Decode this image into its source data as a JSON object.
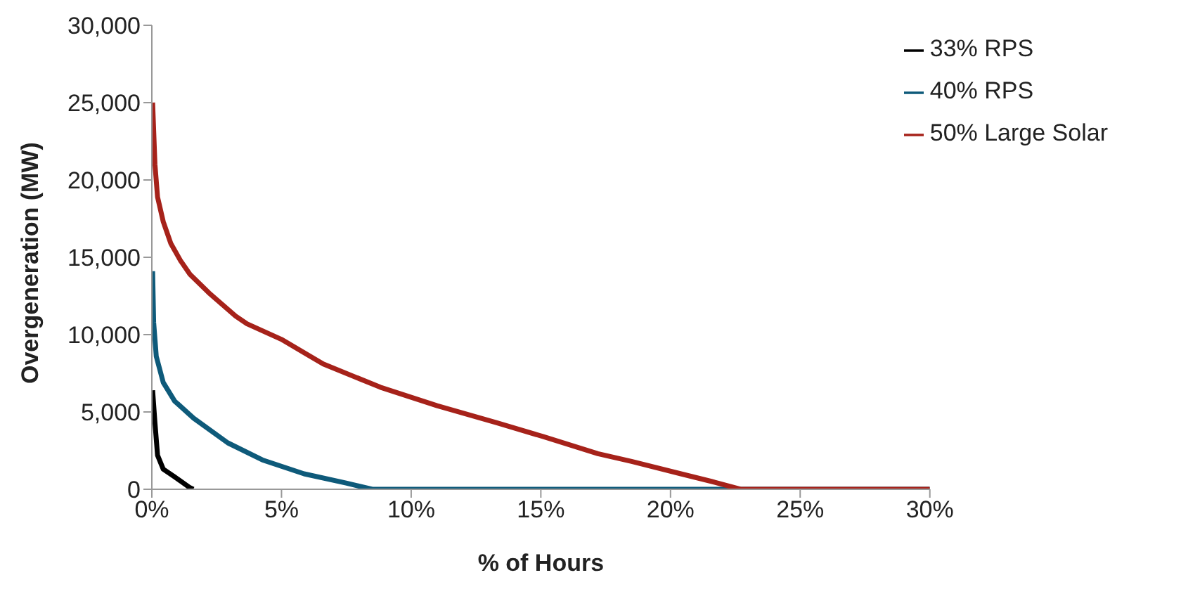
{
  "chart_data": {
    "type": "line",
    "xlabel": "% of Hours",
    "ylabel": "Overgeneration (MW)",
    "xlim": [
      0,
      30
    ],
    "xticks": [
      {
        "value": 0,
        "label": "0%"
      },
      {
        "value": 5,
        "label": "5%"
      },
      {
        "value": 10,
        "label": "10%"
      },
      {
        "value": 15,
        "label": "15%"
      },
      {
        "value": 20,
        "label": "20%"
      },
      {
        "value": 25,
        "label": "25%"
      },
      {
        "value": 30,
        "label": "30%"
      }
    ],
    "ylim": [
      0,
      30000
    ],
    "yticks": [
      {
        "value": 0,
        "label": "0"
      },
      {
        "value": 5000,
        "label": "5,000"
      },
      {
        "value": 10000,
        "label": "10,000"
      },
      {
        "value": 15000,
        "label": "15,000"
      },
      {
        "value": 20000,
        "label": "20,000"
      },
      {
        "value": 25000,
        "label": "25,000"
      },
      {
        "value": 30000,
        "label": "30,000"
      }
    ],
    "grid": false,
    "legend": "top right",
    "marker": "none",
    "line_style": "solid",
    "series": [
      {
        "name": "33% RPS",
        "color": "#000000",
        "x": [
          0.03,
          0.12,
          0.22,
          0.44,
          0.88,
          1.47,
          1.6
        ],
        "values": [
          6400,
          4300,
          2200,
          1300,
          800,
          100,
          0
        ]
      },
      {
        "name": "40% RPS",
        "color": "#0e5a7a",
        "x": [
          0.03,
          0.07,
          0.17,
          0.44,
          0.88,
          1.61,
          2.93,
          4.26,
          5.87,
          7.49,
          8.5,
          30
        ],
        "values": [
          14100,
          10800,
          8600,
          6900,
          5700,
          4600,
          3000,
          1900,
          1000,
          400,
          0,
          0
        ]
      },
      {
        "name": "50% Large Solar",
        "color": "#a6221a",
        "x": [
          0.03,
          0.12,
          0.22,
          0.44,
          0.73,
          1.1,
          1.47,
          2.2,
          3.23,
          3.67,
          4.99,
          6.61,
          8.81,
          11.0,
          13.3,
          15.1,
          17.2,
          18.5,
          20.4,
          21.6,
          22.7,
          30
        ],
        "values": [
          25000,
          21000,
          18900,
          17300,
          15900,
          14800,
          13900,
          12700,
          11200,
          10700,
          9700,
          8100,
          6600,
          5400,
          4300,
          3400,
          2300,
          1800,
          1000,
          500,
          0,
          0
        ]
      }
    ]
  }
}
